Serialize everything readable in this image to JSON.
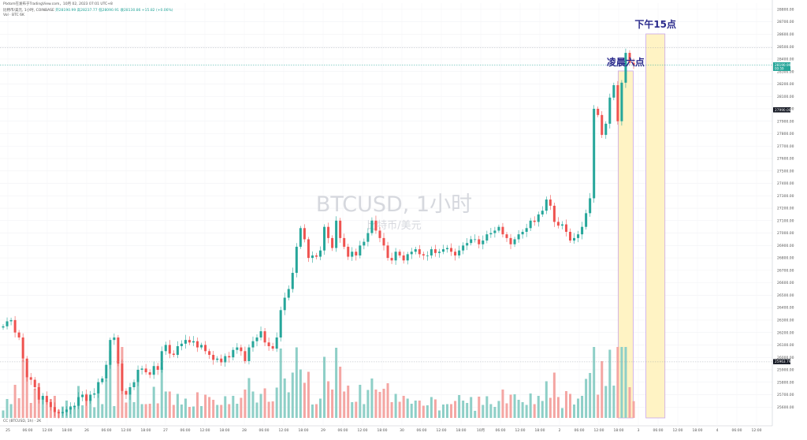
{
  "header": {
    "line1": "Plxtom在发布于TradingView.com，10月 02, 2023 07:01 UTC+8",
    "line2": "比特币/美元, 1小时, COINBASE",
    "ohlc": "开28190.99 高28237.77 低28090.91 收28130.86 +15.82 (+0.06%)",
    "vol": "Vol · BTC  6K"
  },
  "bottom_indicator": "CC (BTCUSD, 1h)  ·  2K",
  "watermark": {
    "title": "BTCUSD, 1小时",
    "subtitle": "比特币/美元"
  },
  "annotations": [
    {
      "text": "凌晨六点",
      "color": "#2a2a8c"
    },
    {
      "text": "下午15点",
      "color": "#2a2a8c"
    }
  ],
  "colors": {
    "up": "#26a69a",
    "down": "#ef5350",
    "up_vol": "#8ecfc7",
    "down_vol": "#f4a6a3",
    "zone_fill": "#fff3c4",
    "zone_stroke": "#c9a6e8",
    "annot_text": "#2a2a8c"
  },
  "price_labels": [
    {
      "text": "28190.99",
      "sub": "00:59",
      "color": "#26a69a"
    },
    {
      "text": "27990.00",
      "color": "#131722"
    },
    {
      "text": "25963.79",
      "color": "#131722"
    }
  ],
  "chart_data": {
    "type": "candlestick",
    "y_axis": {
      "range": [
        25500,
        28850
      ],
      "ticks": [
        25600,
        25700,
        25800,
        25900,
        26000,
        26100,
        26200,
        26300,
        26400,
        26500,
        26600,
        26700,
        26800,
        26900,
        27000,
        27100,
        27200,
        27300,
        27400,
        27500,
        27600,
        27700,
        27800,
        27900,
        28000,
        28100,
        28200,
        28300,
        28400,
        28500,
        28600,
        28700,
        28800
      ]
    },
    "x_axis": {
      "tick_labels": [
        "25",
        "06:00",
        "12:00",
        "18:00",
        "26",
        "06:00",
        "12:00",
        "18:00",
        "27",
        "06:00",
        "12:00",
        "18:00",
        "28",
        "06:00",
        "12:00",
        "18:00",
        "29",
        "06:00",
        "12:00",
        "18:00",
        "30",
        "06:00",
        "12:00",
        "18:00",
        "10月",
        "06:00",
        "12:00",
        "18:00",
        "2",
        "06:00",
        "12:00",
        "18:00",
        "3",
        "06:00",
        "12:00",
        "18:00",
        "4",
        "06:00",
        "12:00"
      ]
    },
    "close": [
      26250,
      26290,
      26300,
      26200,
      26160,
      25990,
      25840,
      25820,
      25760,
      25660,
      25690,
      25640,
      25600,
      25560,
      25550,
      25560,
      25580,
      25600,
      25610,
      25680,
      25700,
      25650,
      25700,
      25710,
      25800,
      25830,
      25940,
      26140,
      26160,
      25950,
      25730,
      25700,
      25760,
      25800,
      25900,
      25910,
      25880,
      25860,
      25930,
      25900,
      26050,
      26100,
      26030,
      26020,
      26090,
      26110,
      26140,
      26120,
      26130,
      26080,
      26100,
      26050,
      26020,
      25980,
      25990,
      25960,
      26010,
      26000,
      26060,
      26080,
      26050,
      25970,
      26080,
      26130,
      26160,
      26210,
      26120,
      26090,
      26070,
      26160,
      26380,
      26480,
      26550,
      26680,
      26890,
      27040,
      26950,
      26800,
      26820,
      26810,
      26860,
      27050,
      26960,
      26880,
      27100,
      26960,
      26890,
      26810,
      26850,
      26820,
      26900,
      26930,
      27000,
      27100,
      27020,
      26960,
      26900,
      26800,
      26780,
      26850,
      26820,
      26780,
      26830,
      26850,
      26870,
      26830,
      26820,
      26820,
      26870,
      26840,
      26850,
      26870,
      26880,
      26850,
      26820,
      26860,
      26900,
      26920,
      26950,
      26950,
      26910,
      26940,
      26990,
      27000,
      27020,
      27050,
      26990,
      26960,
      26910,
      26950,
      26990,
      27010,
      27040,
      27100,
      27090,
      27150,
      27180,
      27270,
      27220,
      27090,
      27060,
      27070,
      27010,
      26940,
      26960,
      26990,
      27050,
      27160,
      27280,
      28000,
      27950,
      27790,
      27880,
      28090,
      28190,
      27900,
      28210,
      28450,
      28370,
      28352
    ]
  }
}
